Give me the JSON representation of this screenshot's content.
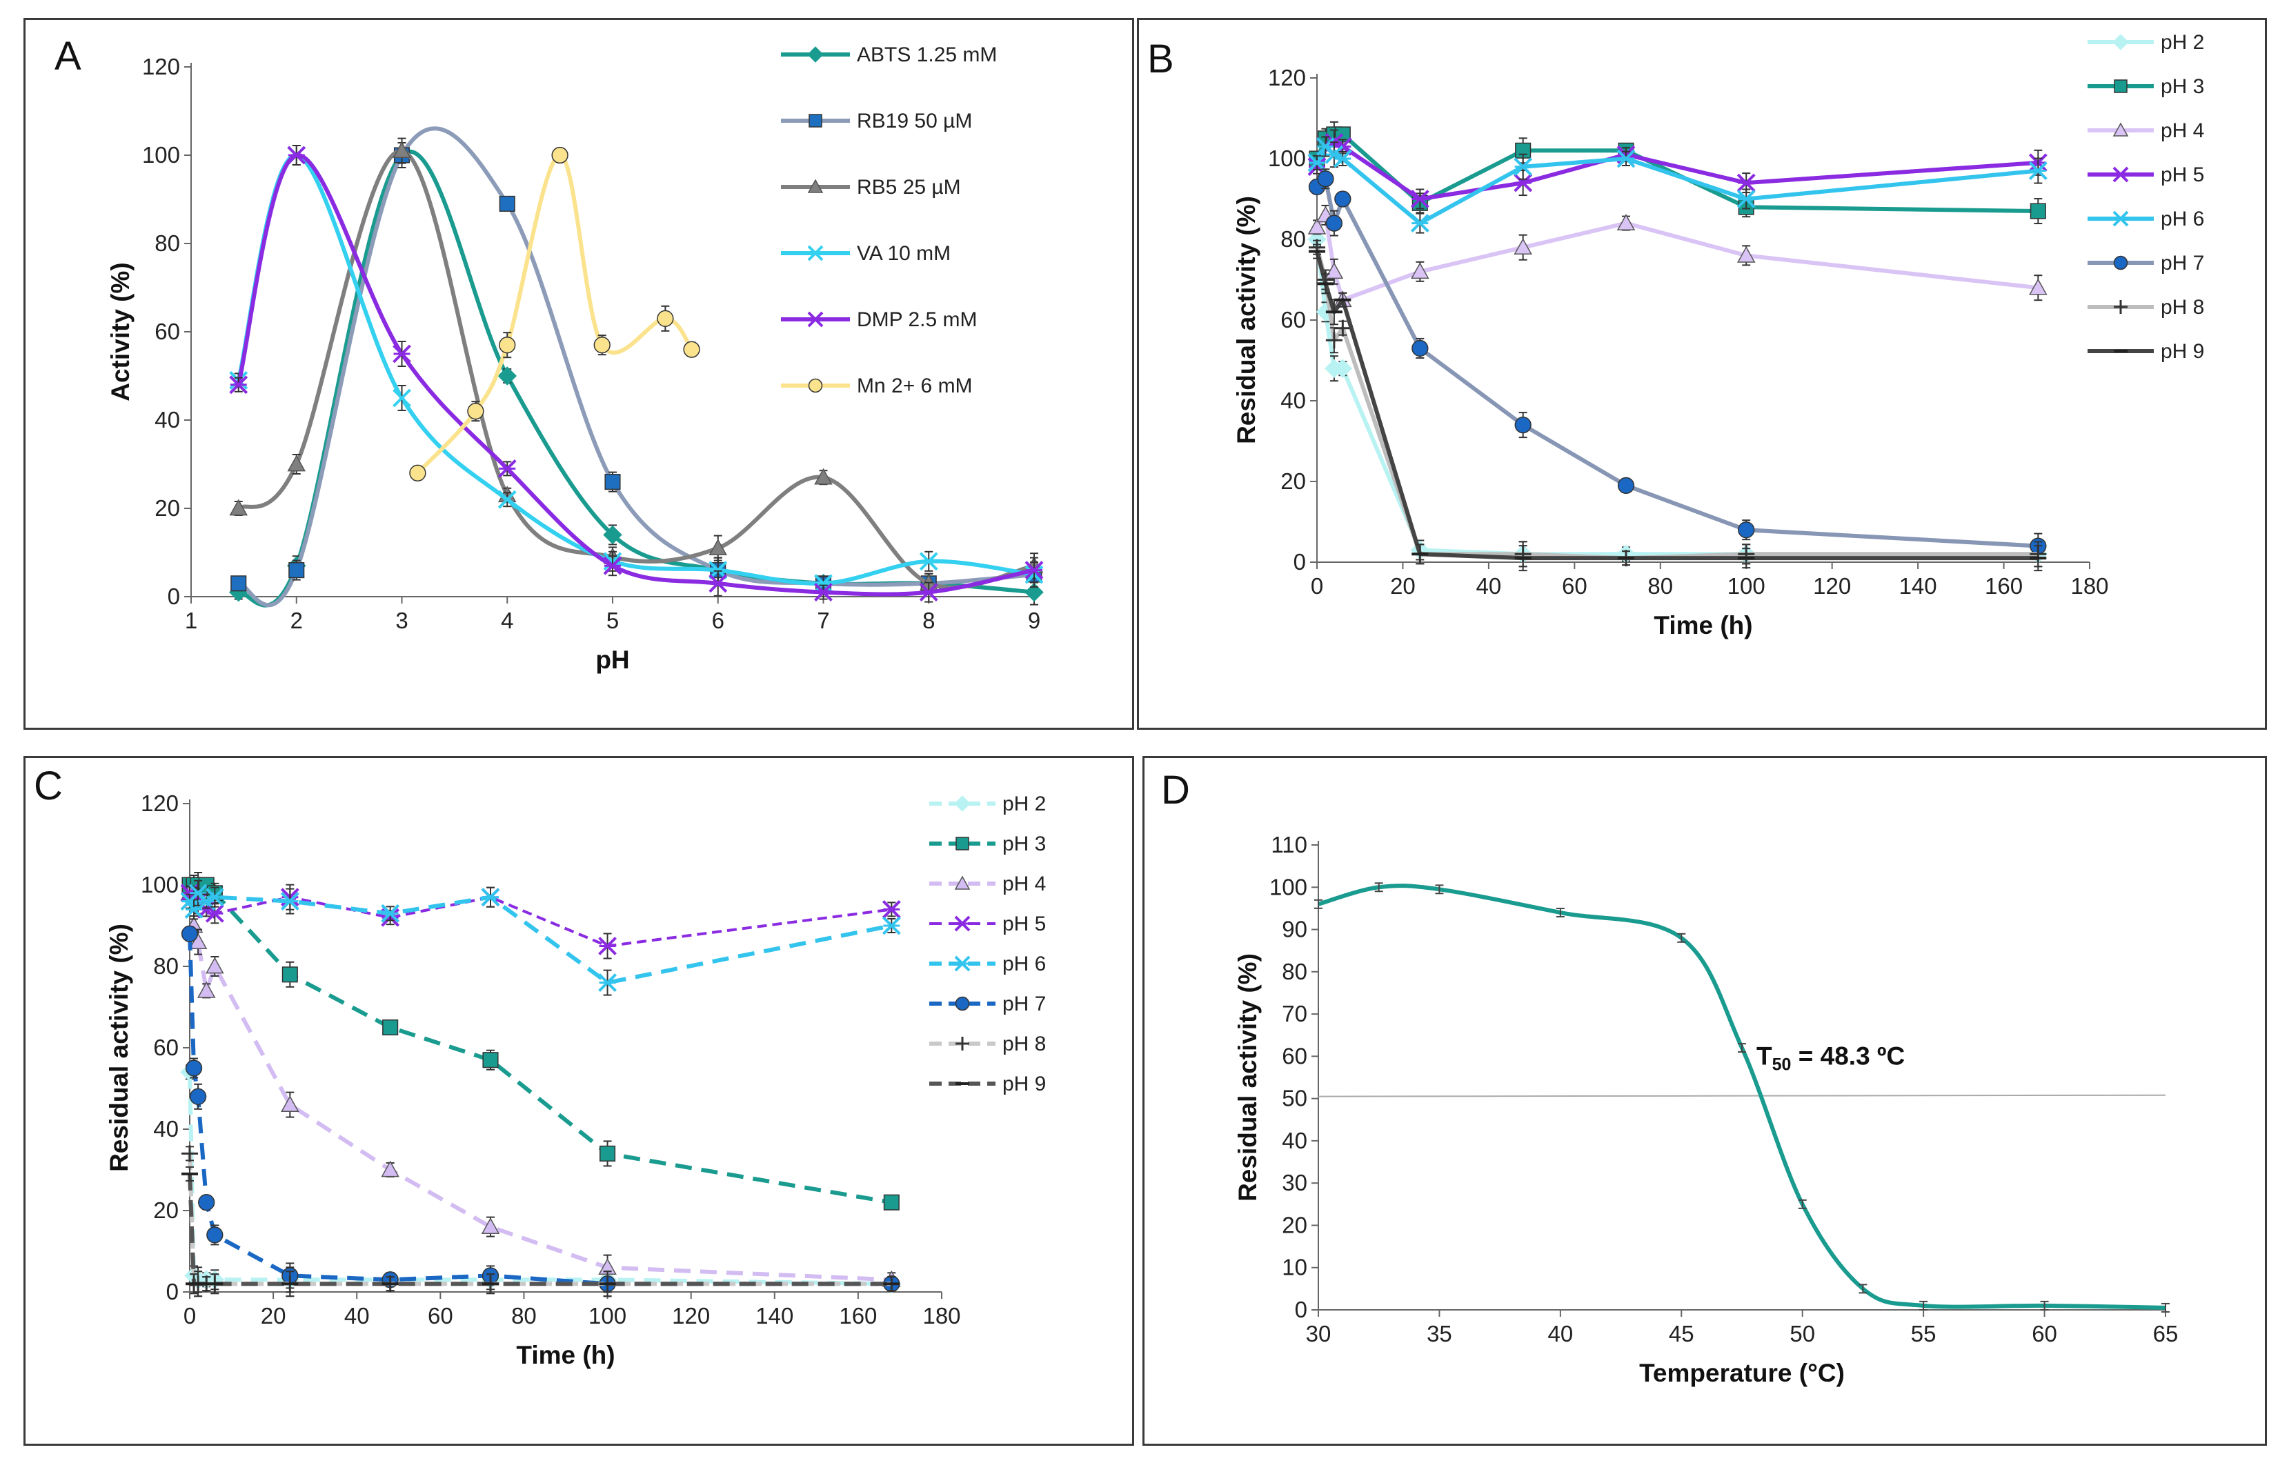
{
  "chart_data": [
    {
      "panel": "A",
      "type": "line",
      "xlabel": "pH",
      "ylabel": "Activity (%)",
      "xlim": [
        1,
        9
      ],
      "ylim": [
        0,
        120
      ],
      "xticks": [
        1,
        2,
        3,
        4,
        5,
        6,
        7,
        8,
        9
      ],
      "yticks": [
        0,
        20,
        40,
        60,
        80,
        100,
        120
      ],
      "series": [
        {
          "name": "ABTS 1.25 mM",
          "color": "#1a9b8f",
          "marker": "diamond",
          "x": [
            1.45,
            2,
            3,
            4,
            5,
            6,
            7,
            8,
            9
          ],
          "y": [
            1,
            7,
            100,
            50,
            14,
            6,
            3,
            3,
            1
          ]
        },
        {
          "name": "RB19 50 µM",
          "color": "#8b9bb8",
          "markerColor": "#1f6fc1",
          "marker": "square",
          "x": [
            1.45,
            2,
            3,
            4,
            5,
            6,
            7,
            8,
            9
          ],
          "y": [
            3,
            6,
            100,
            89,
            26,
            6,
            3,
            3,
            5
          ]
        },
        {
          "name": "RB5 25 µM",
          "color": "#7f7f7f",
          "marker": "triangle",
          "x": [
            1.45,
            2,
            3,
            4,
            5,
            6,
            7,
            8,
            9
          ],
          "y": [
            20,
            30,
            101,
            23,
            9,
            11,
            27,
            3,
            7
          ]
        },
        {
          "name": "VA 10 mM",
          "color": "#33d0f0",
          "marker": "x",
          "x": [
            1.45,
            2,
            3,
            4,
            5,
            6,
            7,
            8,
            9
          ],
          "y": [
            49,
            100,
            45,
            22,
            8,
            6,
            3,
            8,
            5
          ]
        },
        {
          "name": "DMP 2.5 mM",
          "color": "#8a2be2",
          "marker": "star",
          "x": [
            1.45,
            2,
            3,
            4,
            5,
            6,
            7,
            8,
            9
          ],
          "y": [
            48,
            100,
            55,
            29,
            7,
            3,
            1,
            1,
            6
          ]
        },
        {
          "name": "Mn 2+ 6 mM",
          "color": "#fbe38e",
          "markerColor": "#fbe38e",
          "marker": "circle",
          "x": [
            3.15,
            3.7,
            4,
            4.5,
            4.9,
            5.5,
            5.75
          ],
          "y": [
            28,
            42,
            57,
            100,
            57,
            63,
            56
          ]
        }
      ]
    },
    {
      "panel": "B",
      "type": "line",
      "xlabel": "Time (h)",
      "ylabel": "Residual activity (%)",
      "xlim": [
        0,
        180
      ],
      "ylim": [
        0,
        120
      ],
      "xticks": [
        0,
        20,
        40,
        60,
        80,
        100,
        120,
        140,
        160,
        180
      ],
      "yticks": [
        0,
        20,
        40,
        60,
        80,
        100,
        120
      ],
      "series": [
        {
          "name": "pH 2",
          "color": "#b8f2f2",
          "marker": "diamond",
          "x": [
            0,
            2,
            4,
            6,
            24,
            48,
            72,
            100,
            168
          ],
          "y": [
            80,
            62,
            48,
            48,
            3,
            2,
            2,
            2,
            2
          ]
        },
        {
          "name": "pH 3",
          "color": "#1a9b8f",
          "marker": "square",
          "x": [
            0,
            2,
            4,
            6,
            24,
            48,
            72,
            100,
            168
          ],
          "y": [
            100,
            105,
            106,
            106,
            89,
            102,
            102,
            88,
            87
          ]
        },
        {
          "name": "pH 4",
          "color": "#d9c4f5",
          "marker": "triangle",
          "x": [
            0,
            2,
            4,
            6,
            24,
            48,
            72,
            100,
            168
          ],
          "y": [
            83,
            86,
            72,
            65,
            72,
            78,
            84,
            76,
            68
          ]
        },
        {
          "name": "pH 5",
          "color": "#8a2be2",
          "marker": "star",
          "x": [
            0,
            2,
            4,
            6,
            24,
            48,
            72,
            100,
            168
          ],
          "y": [
            98,
            103,
            104,
            103,
            90,
            94,
            101,
            94,
            99
          ]
        },
        {
          "name": "pH 6",
          "color": "#33c4ee",
          "marker": "star",
          "x": [
            0,
            2,
            4,
            6,
            24,
            48,
            72,
            100,
            168
          ],
          "y": [
            99,
            103,
            101,
            100,
            84,
            98,
            100,
            90,
            97
          ]
        },
        {
          "name": "pH 7",
          "color": "#8796b4",
          "markerColor": "#1a68c4",
          "marker": "circle",
          "x": [
            0,
            2,
            4,
            6,
            24,
            48,
            72,
            100,
            168
          ],
          "y": [
            93,
            95,
            84,
            90,
            53,
            34,
            19,
            8,
            4
          ]
        },
        {
          "name": "pH 8",
          "color": "#bdbdbd",
          "marker": "plus",
          "x": [
            0,
            2,
            4,
            6,
            24,
            48,
            72,
            100,
            168
          ],
          "y": [
            78,
            70,
            55,
            58,
            2,
            2,
            1,
            2,
            2
          ]
        },
        {
          "name": "pH 9",
          "color": "#444444",
          "marker": "dash",
          "x": [
            0,
            2,
            4,
            6,
            24,
            48,
            72,
            100,
            168
          ],
          "y": [
            77,
            69,
            62,
            65,
            2,
            1,
            1,
            1,
            1
          ]
        }
      ]
    },
    {
      "panel": "C",
      "type": "line",
      "xlabel": "Time (h)",
      "ylabel": "Residual activity  (%)",
      "xlim": [
        0,
        180
      ],
      "ylim": [
        0,
        120
      ],
      "xticks": [
        0,
        20,
        40,
        60,
        80,
        100,
        120,
        140,
        160,
        180
      ],
      "yticks": [
        0,
        20,
        40,
        60,
        80,
        100,
        120
      ],
      "series": [
        {
          "name": "pH 2",
          "color": "#b8f2f2",
          "marker": "diamond",
          "dash": true,
          "x": [
            0,
            1,
            2,
            4,
            6,
            24,
            48,
            72,
            100,
            168
          ],
          "y": [
            54,
            4,
            3,
            3,
            3,
            3,
            3,
            3,
            3,
            2
          ]
        },
        {
          "name": "pH 3",
          "color": "#1a9b8f",
          "marker": "square",
          "dash": true,
          "x": [
            0,
            1,
            2,
            4,
            6,
            24,
            48,
            72,
            100,
            168
          ],
          "y": [
            100,
            100,
            100,
            100,
            98,
            78,
            65,
            57,
            34,
            22
          ]
        },
        {
          "name": "pH 4",
          "color": "#d2bcf2",
          "marker": "triangle",
          "dash": true,
          "x": [
            0,
            1,
            2,
            4,
            6,
            24,
            48,
            72,
            100,
            168
          ],
          "y": [
            98,
            90,
            86,
            74,
            80,
            46,
            30,
            16,
            6,
            3
          ]
        },
        {
          "name": "pH 5",
          "color": "#8a2be2",
          "marker": "star",
          "dash": true,
          "thin": true,
          "x": [
            0,
            1,
            2,
            4,
            6,
            24,
            48,
            72,
            100,
            168
          ],
          "y": [
            98,
            97,
            96,
            94,
            93,
            97,
            92,
            97,
            85,
            94
          ]
        },
        {
          "name": "pH 6",
          "color": "#33c4ee",
          "marker": "star",
          "dash": true,
          "x": [
            0,
            1,
            2,
            4,
            6,
            24,
            48,
            72,
            100,
            168
          ],
          "y": [
            96,
            94,
            98,
            96,
            97,
            96,
            93,
            97,
            76,
            90
          ]
        },
        {
          "name": "pH 7",
          "color": "#1a68c4",
          "marker": "circle",
          "dash": true,
          "x": [
            0,
            1,
            2,
            4,
            6,
            24,
            48,
            72,
            100,
            168
          ],
          "y": [
            88,
            55,
            48,
            22,
            14,
            4,
            3,
            4,
            2,
            2
          ]
        },
        {
          "name": "pH 8",
          "color": "#c9c9c9",
          "marker": "plus",
          "dash": true,
          "x": [
            0,
            1,
            2,
            4,
            6,
            24,
            48,
            72,
            100,
            168
          ],
          "y": [
            34,
            2,
            2,
            2,
            2,
            2,
            2,
            2,
            2,
            2
          ]
        },
        {
          "name": "pH 9",
          "color": "#555555",
          "marker": "dash",
          "dash": true,
          "x": [
            0,
            1,
            2,
            4,
            6,
            24,
            48,
            72,
            100,
            168
          ],
          "y": [
            29,
            2,
            2,
            2,
            2,
            2,
            2,
            2,
            2,
            2
          ]
        }
      ]
    },
    {
      "panel": "D",
      "type": "line",
      "xlabel": "Temperature (°C)",
      "ylabel": "Residual activity  (%)",
      "xlim": [
        30,
        65
      ],
      "ylim": [
        0,
        110
      ],
      "xticks": [
        30,
        35,
        40,
        45,
        50,
        55,
        60,
        65
      ],
      "yticks": [
        0,
        10,
        20,
        30,
        40,
        50,
        60,
        70,
        80,
        90,
        100,
        110
      ],
      "reference_line_y": 50.5,
      "annotation": {
        "prefix": "T",
        "subscript": "50",
        "suffix": " = 48.3 ºC"
      },
      "series": [
        {
          "name": "Residual activity",
          "color": "#1a9b8f",
          "marker": "none",
          "x": [
            30,
            32.5,
            35,
            40,
            45,
            47.5,
            50,
            52.5,
            55,
            60,
            65
          ],
          "y": [
            96,
            100,
            99.5,
            94,
            88,
            62,
            25,
            5,
            1,
            1,
            0.5
          ]
        }
      ]
    }
  ]
}
